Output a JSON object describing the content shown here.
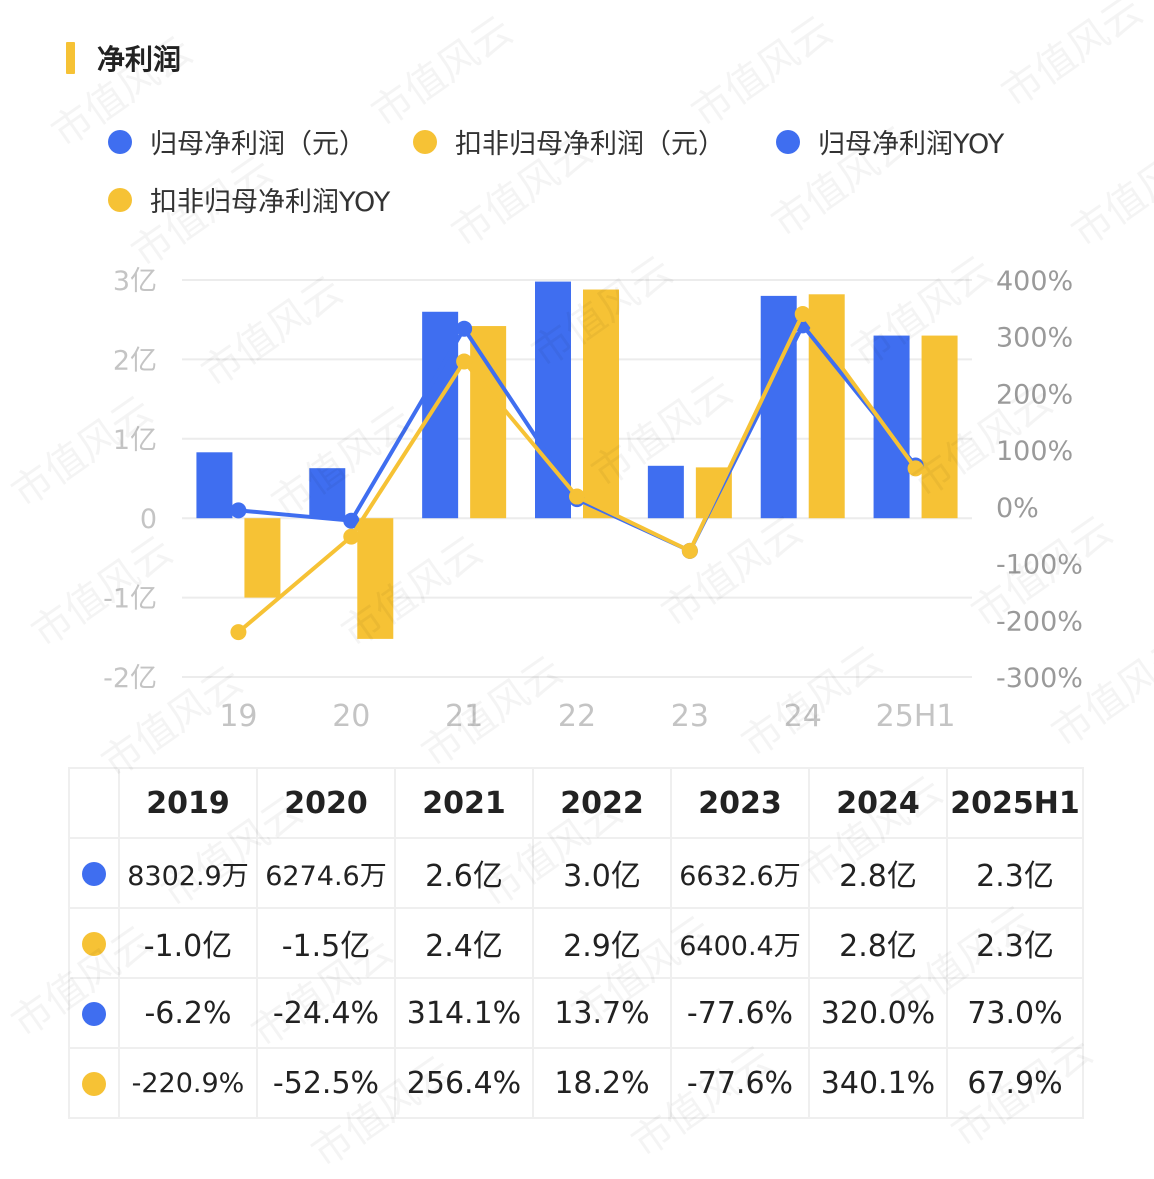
{
  "header": {
    "title": "净利润"
  },
  "colors": {
    "blue": "#3f6ef0",
    "yellow": "#f6c235",
    "accent": "#f6c235"
  },
  "watermark": "市值风云",
  "chart_data": {
    "type": "bar",
    "categories": [
      "19",
      "20",
      "21",
      "22",
      "23",
      "24",
      "25H1"
    ],
    "left_axis": {
      "ticks": [
        "3亿",
        "2亿",
        "1亿",
        "0",
        "-1亿",
        "-2亿"
      ],
      "range": [
        -2,
        3
      ],
      "unit": "亿"
    },
    "right_axis": {
      "ticks": [
        "400%",
        "300%",
        "200%",
        "100%",
        "0%",
        "-100%",
        "-200%",
        "-300%"
      ],
      "range": [
        -300,
        400
      ],
      "unit": "%"
    },
    "grid": true,
    "legend_position": "top",
    "series": [
      {
        "name": "归母净利润（元）",
        "kind": "bar",
        "axis": "left",
        "color": "#3f6ef0",
        "values": [
          0.83,
          0.63,
          2.6,
          2.98,
          0.66,
          2.8,
          2.3
        ]
      },
      {
        "name": "扣非归母净利润（元）",
        "kind": "bar",
        "axis": "left",
        "color": "#f6c235",
        "values": [
          -1.0,
          -1.52,
          2.42,
          2.88,
          0.64,
          2.82,
          2.3
        ]
      },
      {
        "name": "归母净利润YOY",
        "kind": "line",
        "axis": "right",
        "color": "#3f6ef0",
        "values": [
          -6.2,
          -24.4,
          314.1,
          13.7,
          -77.6,
          320.0,
          73.0
        ]
      },
      {
        "name": "扣非归母净利润YOY",
        "kind": "line",
        "axis": "right",
        "color": "#f6c235",
        "values": [
          -220.9,
          -52.5,
          256.4,
          18.2,
          -77.6,
          340.1,
          67.9
        ]
      }
    ]
  },
  "table": {
    "headers": [
      "2019",
      "2020",
      "2021",
      "2022",
      "2023",
      "2024",
      "2025H1"
    ],
    "rows": [
      {
        "color": "#3f6ef0",
        "values": [
          "8302.9万",
          "6274.6万",
          "2.6亿",
          "3.0亿",
          "6632.6万",
          "2.8亿",
          "2.3亿"
        ]
      },
      {
        "color": "#f6c235",
        "values": [
          "-1.0亿",
          "-1.5亿",
          "2.4亿",
          "2.9亿",
          "6400.4万",
          "2.8亿",
          "2.3亿"
        ]
      },
      {
        "color": "#3f6ef0",
        "values": [
          "-6.2%",
          "-24.4%",
          "314.1%",
          "13.7%",
          "-77.6%",
          "320.0%",
          "73.0%"
        ]
      },
      {
        "color": "#f6c235",
        "values": [
          "-220.9%",
          "-52.5%",
          "256.4%",
          "18.2%",
          "-77.6%",
          "340.1%",
          "67.9%"
        ]
      }
    ]
  }
}
